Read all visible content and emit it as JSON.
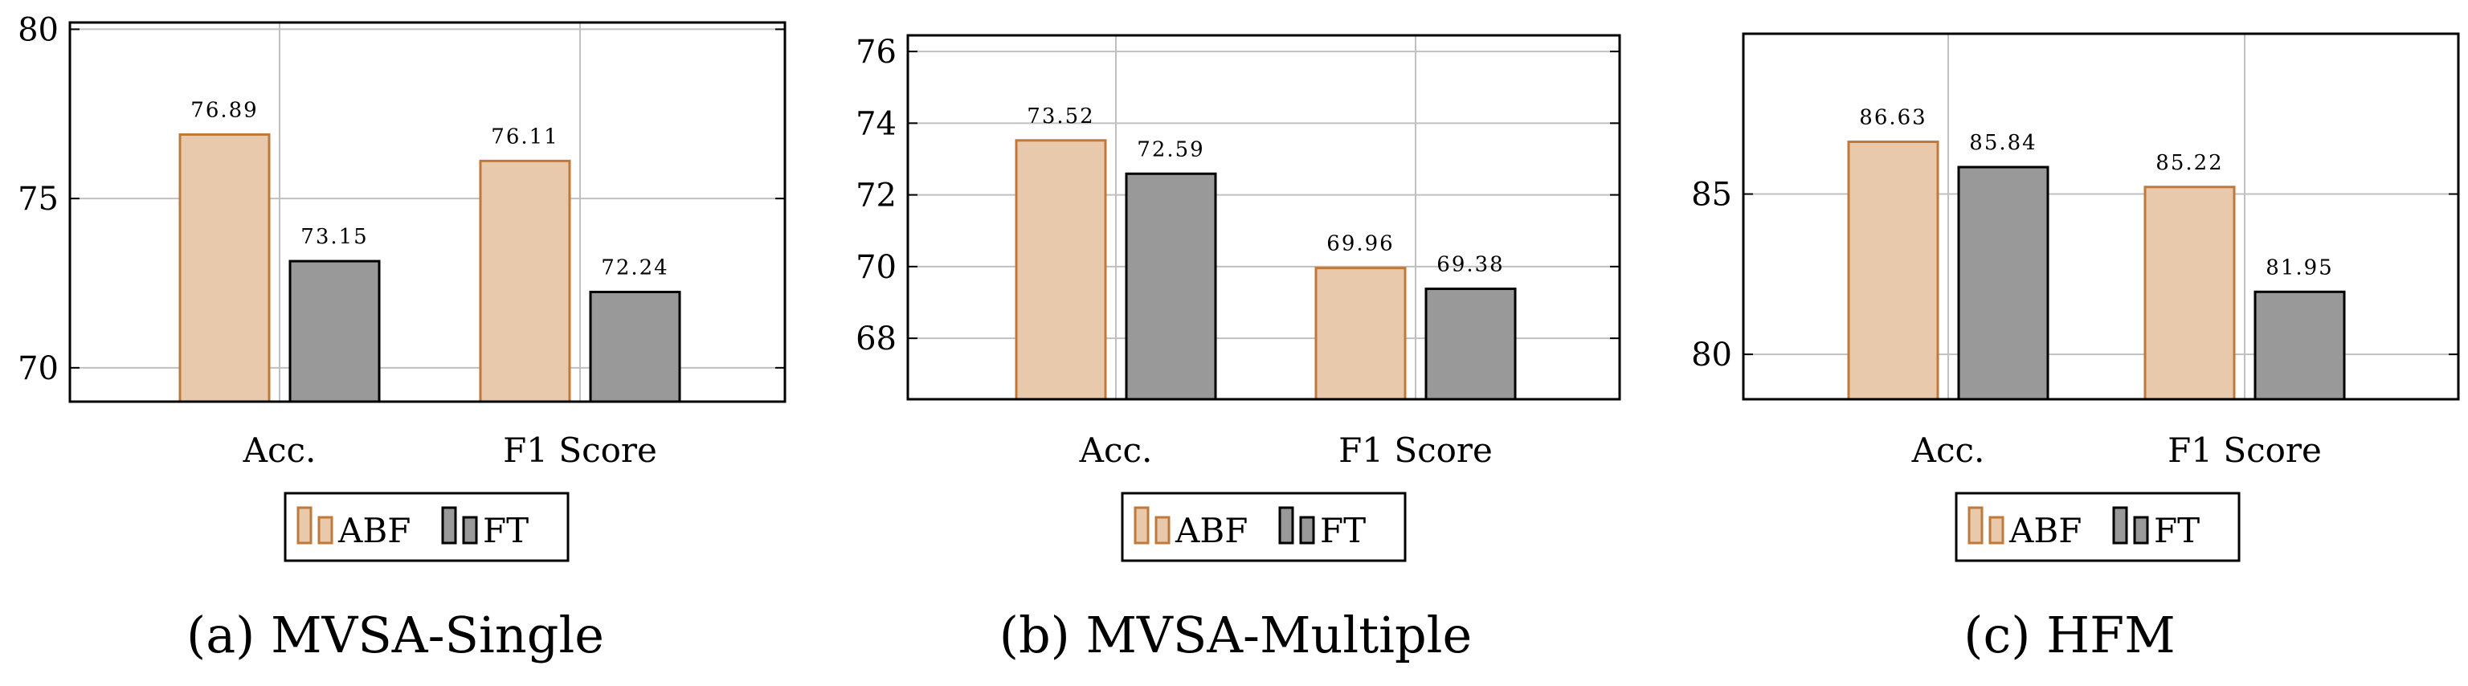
{
  "figure": {
    "subcaptions": [
      "(a) MVSA-Single",
      "(b) MVSA-Multiple",
      "(c) HFM"
    ]
  },
  "colors": {
    "abf_fill": "#e8c9ac",
    "abf_stroke": "#c0793a",
    "ft_fill": "#999999",
    "ft_stroke": "#000000",
    "grid": "#c0c0c0",
    "frame": "#000000"
  },
  "chart_data": [
    {
      "type": "bar",
      "title": "(a) MVSA-Single",
      "categories": [
        "Acc.",
        "F1 Score"
      ],
      "series": [
        {
          "name": "ABF",
          "values": [
            76.89,
            76.11
          ]
        },
        {
          "name": "FT",
          "values": [
            73.15,
            72.24
          ]
        }
      ],
      "value_labels": [
        [
          "76.89",
          "76.11"
        ],
        [
          "73.15",
          "72.24"
        ]
      ],
      "ylim": [
        69.0,
        80.2
      ],
      "yticks": [
        70,
        75,
        80
      ],
      "ytick_labels": [
        "70",
        "75",
        "80"
      ],
      "grid": true,
      "legend": {
        "position": "bottom-center",
        "entries": [
          "ABF",
          "FT"
        ]
      }
    },
    {
      "type": "bar",
      "title": "(b) MVSA-Multiple",
      "categories": [
        "Acc.",
        "F1 Score"
      ],
      "series": [
        {
          "name": "ABF",
          "values": [
            73.52,
            69.96
          ]
        },
        {
          "name": "FT",
          "values": [
            72.59,
            69.38
          ]
        }
      ],
      "value_labels": [
        [
          "73.52",
          "69.96"
        ],
        [
          "72.59",
          "69.38"
        ]
      ],
      "ylim": [
        66.3,
        76.45
      ],
      "yticks": [
        68,
        70,
        72,
        74,
        76
      ],
      "ytick_labels": [
        "68",
        "70",
        "72",
        "74",
        "76"
      ],
      "grid": true,
      "legend": {
        "position": "bottom-center",
        "entries": [
          "ABF",
          "FT"
        ]
      }
    },
    {
      "type": "bar",
      "title": "(c) HFM",
      "categories": [
        "Acc.",
        "F1 Score"
      ],
      "series": [
        {
          "name": "ABF",
          "values": [
            86.63,
            85.22
          ]
        },
        {
          "name": "FT",
          "values": [
            85.84,
            81.95
          ]
        }
      ],
      "value_labels": [
        [
          "86.63",
          "85.22"
        ],
        [
          "85.84",
          "81.95"
        ]
      ],
      "ylim": [
        78.6,
        90.0
      ],
      "yticks": [
        80,
        85
      ],
      "ytick_labels": [
        "80",
        "85"
      ],
      "grid": true,
      "legend": {
        "position": "bottom-center",
        "entries": [
          "ABF",
          "FT"
        ]
      }
    }
  ]
}
